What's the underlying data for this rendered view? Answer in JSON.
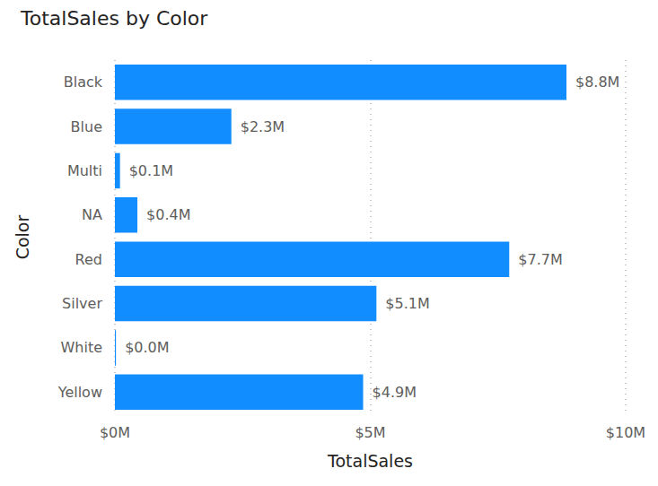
{
  "chart_data": {
    "type": "bar",
    "orientation": "horizontal",
    "title": "TotalSales by Color",
    "x_label": "TotalSales",
    "y_label": "Color",
    "categories": [
      "Black",
      "Blue",
      "Multi",
      "NA",
      "Red",
      "Silver",
      "White",
      "Yellow"
    ],
    "values": [
      8840000,
      2280000,
      100000,
      440000,
      7720000,
      5120000,
      20000,
      4860000
    ],
    "value_labels": [
      "$8.8M",
      "$2.3M",
      "$0.1M",
      "$0.4M",
      "$7.7M",
      "$5.1M",
      "$0.0M",
      "$4.9M"
    ],
    "color": "#118dff",
    "xlim": [
      0,
      10000000
    ],
    "xticks": [
      {
        "value": 0,
        "label": "$0M"
      },
      {
        "value": 5000000,
        "label": "$5M"
      },
      {
        "value": 10000000,
        "label": "$10M"
      }
    ],
    "grid": true,
    "data_labels": true
  }
}
